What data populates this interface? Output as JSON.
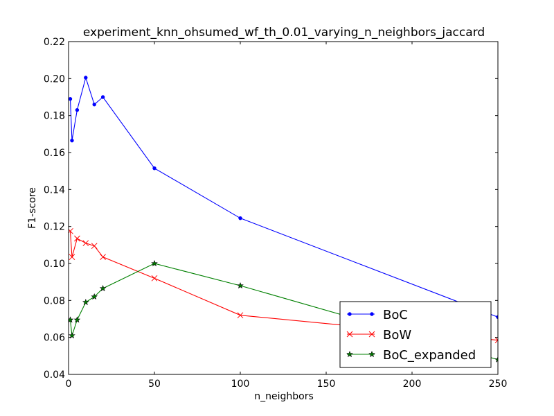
{
  "chart_data": {
    "type": "line",
    "title": "experiment_knn_ohsumed_wf_th_0.01_varying_n_neighbors_jaccard",
    "xlabel": "n_neighbors",
    "ylabel": "F1-score",
    "xlim": [
      0,
      250
    ],
    "ylim": [
      0.04,
      0.22
    ],
    "xticks": [
      0,
      50,
      100,
      150,
      200,
      250
    ],
    "yticks": [
      0.04,
      0.06,
      0.08,
      0.1,
      0.12,
      0.14,
      0.16,
      0.18,
      0.2,
      0.22
    ],
    "xtick_labels": [
      "0",
      "50",
      "100",
      "150",
      "200",
      "250"
    ],
    "ytick_labels": [
      "0.04",
      "0.06",
      "0.08",
      "0.10",
      "0.12",
      "0.14",
      "0.16",
      "0.18",
      "0.20",
      "0.22"
    ],
    "grid": false,
    "legend_position": "lower-right",
    "series": [
      {
        "name": "BoC",
        "color": "#0000ff",
        "marker": "dot",
        "x": [
          1,
          2,
          5,
          10,
          15,
          20,
          50,
          100,
          250
        ],
        "y": [
          0.189,
          0.1665,
          0.183,
          0.2005,
          0.186,
          0.19,
          0.1515,
          0.1245,
          0.071
        ]
      },
      {
        "name": "BoW",
        "color": "#ff0000",
        "marker": "x",
        "x": [
          1,
          2,
          5,
          10,
          15,
          20,
          50,
          100,
          250
        ],
        "y": [
          0.1175,
          0.1035,
          0.1135,
          0.111,
          0.1095,
          0.1035,
          0.092,
          0.072,
          0.0585
        ]
      },
      {
        "name": "BoC_expanded",
        "color": "#008000",
        "marker": "star",
        "x": [
          1,
          2,
          5,
          10,
          15,
          20,
          50,
          100,
          250
        ],
        "y": [
          0.0695,
          0.061,
          0.0695,
          0.079,
          0.082,
          0.0865,
          0.1,
          0.088,
          0.048
        ]
      }
    ]
  }
}
